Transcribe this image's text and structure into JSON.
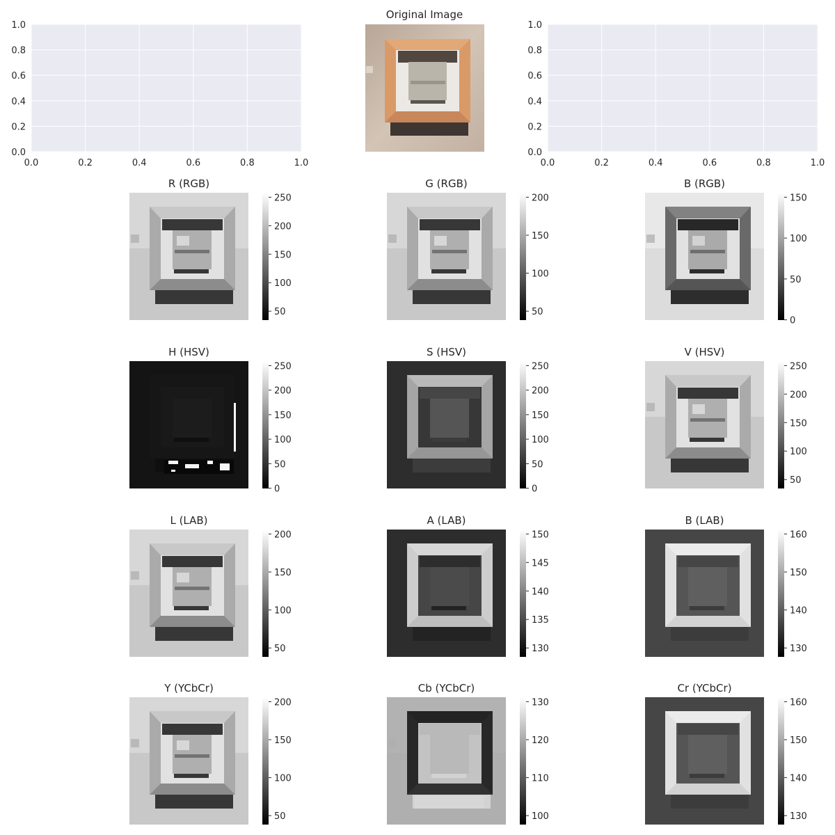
{
  "chart_data": {
    "type": "figure-grid",
    "original": {
      "title": "Original Image"
    },
    "empty_axes": [
      {
        "type": "empty",
        "xlim": [
          0,
          1
        ],
        "ylim": [
          0,
          1
        ],
        "xticks": [
          "0.0",
          "0.2",
          "0.4",
          "0.6",
          "0.8",
          "1.0"
        ],
        "yticks": [
          "0.0",
          "0.2",
          "0.4",
          "0.6",
          "0.8",
          "1.0"
        ]
      },
      {
        "type": "empty",
        "xlim": [
          0,
          1
        ],
        "ylim": [
          0,
          1
        ],
        "xticks": [
          "0.0",
          "0.2",
          "0.4",
          "0.6",
          "0.8",
          "1.0"
        ],
        "yticks": [
          "0.0",
          "0.2",
          "0.4",
          "0.6",
          "0.8",
          "1.0"
        ]
      }
    ],
    "channels": [
      {
        "title": "R (RGB)",
        "type": "heatmap",
        "colormap": "gray",
        "variant": "normal",
        "ticks": [
          250,
          200,
          150,
          100,
          50
        ]
      },
      {
        "title": "G (RGB)",
        "type": "heatmap",
        "colormap": "gray",
        "variant": "normal",
        "ticks": [
          200,
          150,
          100,
          50
        ]
      },
      {
        "title": "B (RGB)",
        "type": "heatmap",
        "colormap": "gray",
        "variant": "darkframe",
        "ticks": [
          150,
          100,
          50,
          0
        ]
      },
      {
        "title": "H (HSV)",
        "type": "heatmap",
        "colormap": "gray",
        "variant": "hue",
        "ticks": [
          250,
          200,
          150,
          100,
          50,
          0
        ]
      },
      {
        "title": "S (HSV)",
        "type": "heatmap",
        "colormap": "gray",
        "variant": "sat",
        "ticks": [
          250,
          200,
          150,
          100,
          50,
          0
        ]
      },
      {
        "title": "V (HSV)",
        "type": "heatmap",
        "colormap": "gray",
        "variant": "normal",
        "ticks": [
          250,
          200,
          150,
          100,
          50
        ]
      },
      {
        "title": "L (LAB)",
        "type": "heatmap",
        "colormap": "gray",
        "variant": "normal",
        "ticks": [
          200,
          150,
          100,
          50
        ]
      },
      {
        "title": "A (LAB)",
        "type": "heatmap",
        "colormap": "gray",
        "variant": "chromaA",
        "ticks": [
          150,
          145,
          140,
          135,
          130
        ]
      },
      {
        "title": "B (LAB)",
        "type": "heatmap",
        "colormap": "gray",
        "variant": "chromaB",
        "ticks": [
          160,
          150,
          140,
          130
        ]
      },
      {
        "title": "Y (YCbCr)",
        "type": "heatmap",
        "colormap": "gray",
        "variant": "normal",
        "ticks": [
          200,
          150,
          100,
          50
        ]
      },
      {
        "title": "Cb (YCbCr)",
        "type": "heatmap",
        "colormap": "gray",
        "variant": "cb",
        "ticks": [
          130,
          120,
          110,
          100
        ]
      },
      {
        "title": "Cr (YCbCr)",
        "type": "heatmap",
        "colormap": "gray",
        "variant": "chromaB",
        "ticks": [
          160,
          150,
          140,
          130
        ]
      }
    ]
  },
  "colors": {
    "axes_bg": "#eaeaf2",
    "grid": "#ffffff",
    "text": "#262626",
    "wall": "#c9b7a8",
    "frame": "#d99a68",
    "frame_dark": "#c8875a",
    "mat": "#ece9e4",
    "painting": "#b9b5ab",
    "shadow": "#3a3a3a"
  }
}
